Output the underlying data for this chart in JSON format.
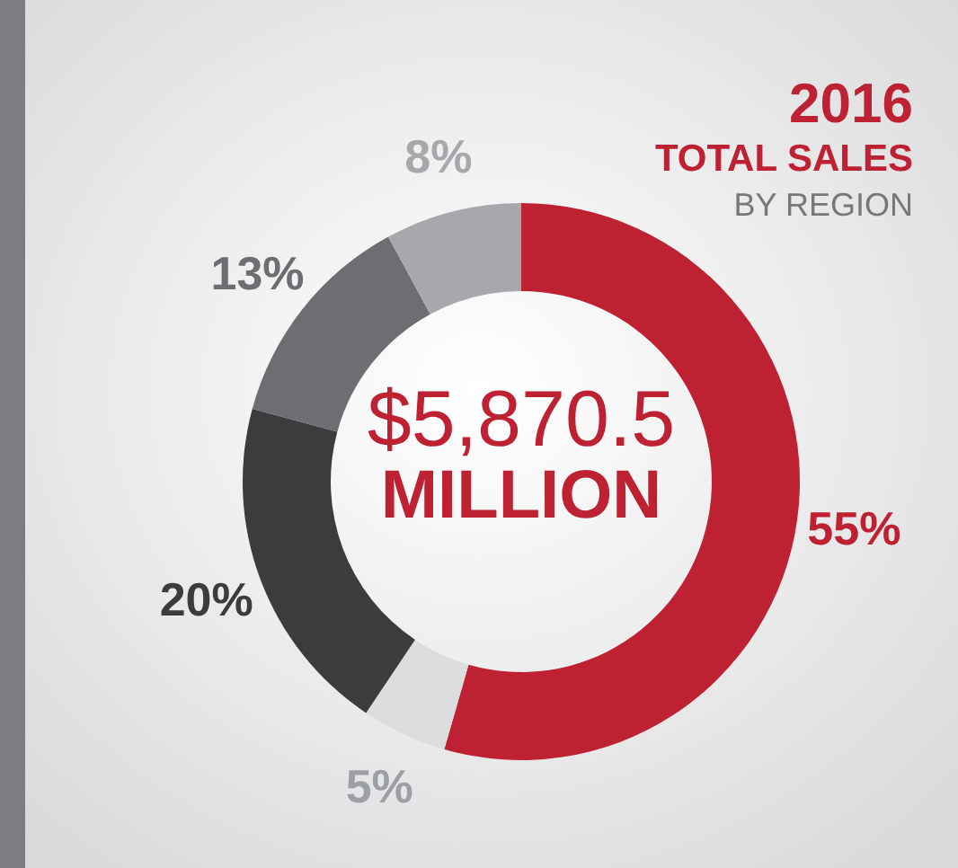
{
  "chart_data": {
    "type": "donut",
    "title": "2016",
    "subtitle": "TOTAL SALES",
    "annotations": [
      "BY REGION",
      "$5,870.5",
      "MILLION"
    ],
    "categories": [
      null,
      null,
      null,
      null,
      null
    ],
    "values": [
      55,
      5,
      20,
      13,
      8
    ],
    "colors": [
      "#be2132",
      "#dcdddf",
      "#3b3c3e",
      "#6d6e71",
      "#a6a8ab"
    ],
    "value_labels": [
      "55%",
      "5%",
      "20%",
      "13%",
      "8%"
    ]
  }
}
